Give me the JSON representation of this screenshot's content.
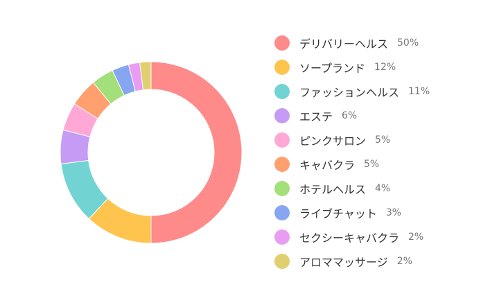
{
  "chart_data": {
    "type": "pie",
    "style": "donut",
    "title": "",
    "legend_position": "right",
    "slices": [
      {
        "label": "デリバリーヘルス",
        "value": 50,
        "value_label": "50%",
        "color": "#FF8A8A"
      },
      {
        "label": "ソープランド",
        "value": 12,
        "value_label": "12%",
        "color": "#FFC44D"
      },
      {
        "label": "ファッションヘルス",
        "value": 11,
        "value_label": "11%",
        "color": "#72D3D3"
      },
      {
        "label": "エステ",
        "value": 6,
        "value_label": "6%",
        "color": "#C59BF5"
      },
      {
        "label": "ピンクサロン",
        "value": 5,
        "value_label": "5%",
        "color": "#FFA8D6"
      },
      {
        "label": "キャバクラ",
        "value": 5,
        "value_label": "5%",
        "color": "#FFA06E"
      },
      {
        "label": "ホテルヘルス",
        "value": 4,
        "value_label": "4%",
        "color": "#A3DF7A"
      },
      {
        "label": "ライブチャット",
        "value": 3,
        "value_label": "3%",
        "color": "#86A6F2"
      },
      {
        "label": "セクシーキャバクラ",
        "value": 2,
        "value_label": "2%",
        "color": "#E99DF2"
      },
      {
        "label": "アロママッサージ",
        "value": 2,
        "value_label": "2%",
        "color": "#E0CF6E"
      }
    ]
  }
}
